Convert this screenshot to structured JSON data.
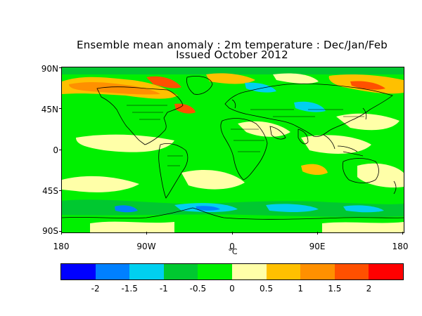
{
  "title_line1": "Ensemble mean anomaly : 2m temperature : Dec/Jan/Feb",
  "title_line2": "Issued October 2012",
  "lat_labels": [
    "90N",
    "45N",
    "0",
    "45S",
    "90S"
  ],
  "lon_labels": [
    "180",
    "90W",
    "0",
    "90E",
    "180"
  ],
  "unit_label": "°C",
  "colorbar": {
    "colors": [
      "#0000ff",
      "#0080ff",
      "#00d0f0",
      "#00c830",
      "#00f000",
      "#ffffa8",
      "#ffc000",
      "#ff9000",
      "#ff5000",
      "#ff0000"
    ],
    "labels": [
      "-2",
      "-1.5",
      "-1",
      "-0.5",
      "0",
      "0.5",
      "1",
      "1.5",
      "2"
    ]
  }
}
